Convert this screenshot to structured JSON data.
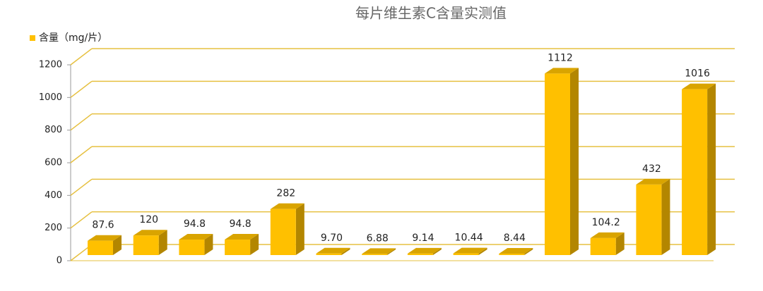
{
  "chart_data": {
    "type": "bar3d",
    "title": "每片维生素C含量实测值",
    "series": [
      {
        "name": "含量（mg/片）",
        "color": "#ffc000",
        "values": [
          87.6,
          120,
          94.8,
          94.8,
          282,
          9.7,
          6.88,
          9.14,
          10.44,
          8.44,
          1112,
          104.2,
          432,
          1016
        ],
        "value_labels": [
          "87.6",
          "120",
          "94.8",
          "94.8",
          "282",
          "9.70",
          "6.88",
          "9.14",
          "10.44",
          "8.44",
          "1112",
          "104.2",
          "432",
          "1016"
        ]
      }
    ],
    "ylim": [
      0,
      1200
    ],
    "yticks": [
      0,
      200,
      400,
      600,
      800,
      1000,
      1200
    ],
    "grid": true,
    "legend": "top-left"
  }
}
